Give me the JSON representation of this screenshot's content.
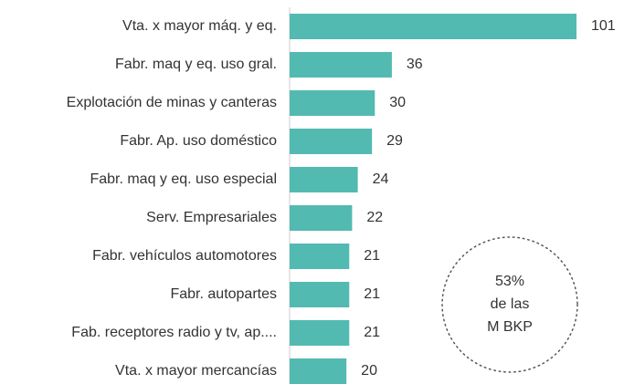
{
  "chart_data": {
    "type": "bar",
    "orientation": "horizontal",
    "categories": [
      "Vta. x mayor máq. y eq.",
      "Fabr. maq y eq. uso gral.",
      "Explotación de minas y canteras",
      "Fabr. Ap. uso doméstico",
      "Fabr. maq y eq. uso especial",
      "Serv. Empresariales",
      "Fabr. vehículos automotores",
      "Fabr. autopartes",
      "Fab. receptores radio y tv, ap....",
      "Vta. x mayor mercancías"
    ],
    "values": [
      101,
      36,
      30,
      29,
      24,
      22,
      21,
      21,
      21,
      20
    ],
    "color": "#52bab1",
    "xlim": [
      0,
      101
    ],
    "annotations": [
      "53%",
      "de las",
      "M BKP"
    ]
  }
}
